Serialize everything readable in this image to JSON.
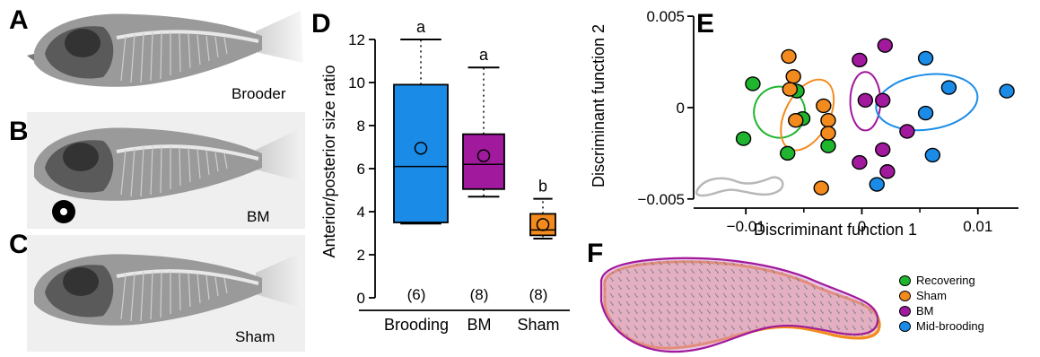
{
  "panels": {
    "A": {
      "letter": "A",
      "caption": "Brooder"
    },
    "B": {
      "letter": "B",
      "caption": "BM"
    },
    "C": {
      "letter": "C",
      "caption": "Sham"
    },
    "D": {
      "letter": "D"
    },
    "E": {
      "letter": "E"
    },
    "F": {
      "letter": "F"
    }
  },
  "chart_data": [
    {
      "panel": "D",
      "type": "box",
      "ylabel": "Anterior/posterior size ratio",
      "ylim": [
        0,
        12
      ],
      "yticks": [
        0,
        2,
        4,
        6,
        8,
        10,
        12
      ],
      "categories": [
        "Brooding",
        "BM",
        "Sham"
      ],
      "colors": [
        "#1a8ce8",
        "#a1199c",
        "#f38a1d"
      ],
      "boxes": [
        {
          "whisker_low": 3.45,
          "q1": 3.5,
          "median": 6.1,
          "q3": 9.9,
          "whisker_high": 12.0,
          "mean": 6.95,
          "n_label": "(6)",
          "letter": "a"
        },
        {
          "whisker_low": 4.7,
          "q1": 5.05,
          "median": 6.2,
          "q3": 7.6,
          "whisker_high": 10.7,
          "mean": 6.6,
          "n_label": "(8)",
          "letter": "a"
        },
        {
          "whisker_low": 2.75,
          "q1": 2.9,
          "median": 3.15,
          "q3": 3.9,
          "whisker_high": 4.6,
          "mean": 3.4,
          "n_label": "(8)",
          "letter": "b"
        }
      ]
    },
    {
      "panel": "E",
      "type": "scatter",
      "xlabel": "Discriminant function 1",
      "ylabel": "Discriminant function 2",
      "xlim": [
        -0.0145,
        0.0135
      ],
      "ylim": [
        -0.0055,
        0.0052
      ],
      "xticks": [
        -0.01,
        0,
        0.01
      ],
      "xtick_labels": [
        "−0.01",
        "0",
        "0.01"
      ],
      "yticks": [
        -0.005,
        0,
        0.005
      ],
      "ytick_labels": [
        "−0.005",
        "0",
        "0.005"
      ],
      "series": [
        {
          "name": "Recovering",
          "color": "#1fb52f",
          "points": [
            [
              -0.0094,
              0.0013
            ],
            [
              -0.0102,
              -0.0017
            ],
            [
              -0.0064,
              -0.0025
            ],
            [
              -0.0051,
              -0.0006
            ],
            [
              -0.0029,
              -0.0021
            ],
            [
              -0.0056,
              0.0009
            ]
          ],
          "ellipse": {
            "cx": -0.0071,
            "cy": -0.00025,
            "rx": 0.0022,
            "ry": 0.0014,
            "angle": -28
          }
        },
        {
          "name": "Sham",
          "color": "#f38a1d",
          "points": [
            [
              -0.0063,
              0.0028
            ],
            [
              -0.0059,
              0.0017
            ],
            [
              -0.0062,
              0.001
            ],
            [
              -0.0057,
              -0.0007
            ],
            [
              -0.0029,
              -0.0007
            ],
            [
              -0.0029,
              -0.0014
            ],
            [
              -0.0033,
              0.0001
            ],
            [
              -0.0035,
              -0.0044
            ]
          ],
          "ellipse": {
            "cx": -0.0047,
            "cy": -0.0004,
            "rx": 0.0033,
            "ry": 0.0012,
            "angle": -62
          }
        },
        {
          "name": "BM",
          "color": "#a1199c",
          "points": [
            [
              -0.0002,
              0.0026
            ],
            [
              0.002,
              0.0034
            ],
            [
              0.0003,
              0.0004
            ],
            [
              0.0018,
              0.0004
            ],
            [
              0.0039,
              -0.0013
            ],
            [
              0.0018,
              -0.0023
            ],
            [
              -0.0002,
              -0.003
            ],
            [
              0.0022,
              -0.0035
            ]
          ],
          "ellipse": {
            "cx": 0.0003,
            "cy": 0.00035,
            "rx": 0.0013,
            "ry": 0.0016,
            "angle": 0
          }
        },
        {
          "name": "Mid-brooding",
          "color": "#1a8ce8",
          "points": [
            [
              0.0055,
              0.0027
            ],
            [
              0.0075,
              0.0011
            ],
            [
              0.0125,
              0.0009
            ],
            [
              0.0055,
              -0.0003
            ],
            [
              0.0061,
              -0.0026
            ],
            [
              0.0013,
              -0.0042
            ]
          ],
          "ellipse": {
            "cx": 0.0056,
            "cy": 0.0003,
            "rx": 0.0044,
            "ry": 0.0015,
            "angle": -8
          }
        }
      ]
    }
  ],
  "legend_F": [
    {
      "label": "Recovering",
      "color": "#1fb52f"
    },
    {
      "label": "Sham",
      "color": "#f38a1d"
    },
    {
      "label": "BM",
      "color": "#a1199c"
    },
    {
      "label": "Mid-brooding",
      "color": "#1a8ce8"
    }
  ]
}
